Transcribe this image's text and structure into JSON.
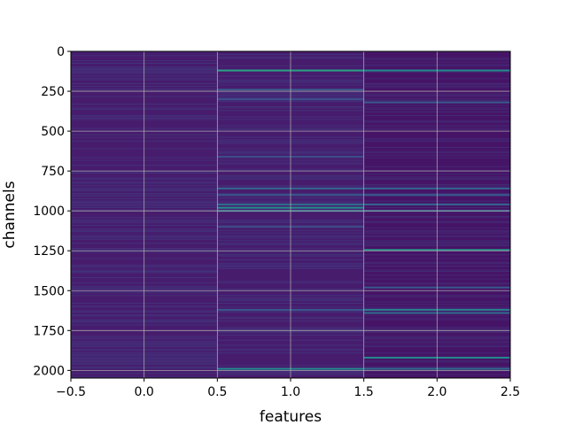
{
  "chart_data": {
    "type": "heatmap",
    "title": "",
    "xlabel": "features",
    "ylabel": "channels",
    "xlim": [
      -0.5,
      2.5
    ],
    "ylim": [
      2048,
      0
    ],
    "grid": true,
    "colormap": "viridis",
    "x_ticks": [
      -0.5,
      0.0,
      0.5,
      1.0,
      1.5,
      2.0,
      2.5
    ],
    "x_tick_labels": [
      "−0.5",
      "0.0",
      "0.5",
      "1.0",
      "1.5",
      "2.0",
      "2.5"
    ],
    "y_ticks": [
      0,
      250,
      500,
      750,
      1000,
      1250,
      1500,
      1750,
      2000
    ],
    "y_tick_labels": [
      "0",
      "250",
      "500",
      "750",
      "1000",
      "1250",
      "1500",
      "1750",
      "2000"
    ],
    "columns": [
      {
        "feature": 0,
        "baseline": 0.1,
        "highlights": []
      },
      {
        "feature": 1,
        "baseline": 0.1,
        "highlights": [
          {
            "channel": 120,
            "value": 0.68
          },
          {
            "channel": 240,
            "value": 0.35
          },
          {
            "channel": 300,
            "value": 0.3
          },
          {
            "channel": 660,
            "value": 0.3
          },
          {
            "channel": 860,
            "value": 0.4
          },
          {
            "channel": 900,
            "value": 0.35
          },
          {
            "channel": 960,
            "value": 0.45
          },
          {
            "channel": 980,
            "value": 0.6
          },
          {
            "channel": 1000,
            "value": 0.5
          },
          {
            "channel": 1100,
            "value": 0.3
          },
          {
            "channel": 1620,
            "value": 0.35
          },
          {
            "channel": 1990,
            "value": 0.6
          }
        ]
      },
      {
        "feature": 2,
        "baseline": 0.07,
        "highlights": [
          {
            "channel": 120,
            "value": 0.6
          },
          {
            "channel": 320,
            "value": 0.35
          },
          {
            "channel": 860,
            "value": 0.4
          },
          {
            "channel": 900,
            "value": 0.35
          },
          {
            "channel": 960,
            "value": 0.4
          },
          {
            "channel": 1000,
            "value": 0.4
          },
          {
            "channel": 1245,
            "value": 0.65
          },
          {
            "channel": 1480,
            "value": 0.35
          },
          {
            "channel": 1620,
            "value": 0.55
          },
          {
            "channel": 1640,
            "value": 0.45
          },
          {
            "channel": 1920,
            "value": 0.6
          },
          {
            "channel": 1990,
            "value": 0.45
          }
        ]
      }
    ]
  }
}
